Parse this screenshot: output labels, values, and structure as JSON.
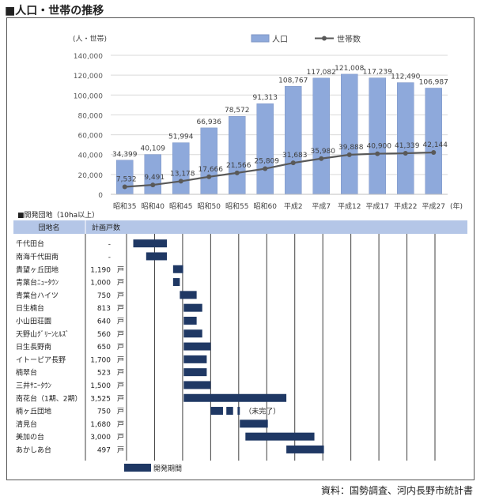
{
  "page_title": "■人口・世帯の推移",
  "source": "資料：国勢調査、河内長野市統計書",
  "chart_data": [
    {
      "type": "bar",
      "ylabel": "(人・世帯)",
      "xunit": "(年)",
      "ylim": [
        0,
        140000
      ],
      "yticks": [
        "0",
        "20,000",
        "40,000",
        "60,000",
        "80,000",
        "100,000",
        "120,000",
        "140,000"
      ],
      "categories": [
        "昭和35",
        "昭和40",
        "昭和45",
        "昭和50",
        "昭和55",
        "昭和60",
        "平成2",
        "平成7",
        "平成12",
        "平成17",
        "平成22",
        "平成27"
      ],
      "series": [
        {
          "name": "人口",
          "kind": "bar",
          "color": "#8EA9DB",
          "values": [
            34399,
            40109,
            51994,
            66936,
            78572,
            91313,
            108767,
            117082,
            121008,
            117239,
            112490,
            106987
          ],
          "labels": [
            "34,399",
            "40,109",
            "51,994",
            "66,936",
            "78,572",
            "91,313",
            "108,767",
            "117,082",
            "121,008",
            "117,239",
            "112,490",
            "106,987"
          ]
        },
        {
          "name": "世帯数",
          "kind": "line",
          "color": "#595959",
          "values": [
            7532,
            9491,
            13178,
            17666,
            21566,
            25809,
            31683,
            35980,
            39888,
            40900,
            41339,
            42144
          ],
          "labels": [
            "7,532",
            "9,491",
            "13,178",
            "17,666",
            "21,566",
            "25,809",
            "31,683",
            "35,980",
            "39,888",
            "40,900",
            "41,339",
            "42,144"
          ]
        }
      ]
    },
    {
      "type": "gantt",
      "title": "■開発団地（10ha以上）",
      "header_name": "団地名",
      "header_count": "計画戸数",
      "legend_label": "開発期間",
      "unit": "戸",
      "bar_color": "#1F3864",
      "timeline": {
        "start": 1960,
        "end": 2015,
        "grid_years": [
          1960,
          1965,
          1970,
          1975,
          1980,
          1985,
          1990,
          1995,
          2000,
          2005,
          2010,
          2015
        ]
      },
      "rows": [
        {
          "name": "千代田台",
          "count": "-",
          "unit": "",
          "periods": [
            [
              1961.2,
              1967.2
            ]
          ]
        },
        {
          "name": "南海千代田南",
          "count": "-",
          "unit": "",
          "periods": [
            [
              1963.5,
              1967.2
            ]
          ]
        },
        {
          "name": "貴望ヶ丘団地",
          "count": "1,190",
          "unit": "戸",
          "periods": [
            [
              1968.3,
              1970.1
            ]
          ]
        },
        {
          "name": "青葉台ﾆｭｰﾀｳﾝ",
          "count": "1,000",
          "unit": "戸",
          "periods": [
            [
              1968.3,
              1969.5
            ]
          ]
        },
        {
          "name": "青葉台ハイツ",
          "count": "750",
          "unit": "戸",
          "periods": [
            [
              1969.5,
              1972.5
            ]
          ]
        },
        {
          "name": "日生楠台",
          "count": "813",
          "unit": "戸",
          "periods": [
            [
              1970.2,
              1973.5
            ]
          ]
        },
        {
          "name": "小山田荘園",
          "count": "640",
          "unit": "戸",
          "periods": [
            [
              1970.2,
              1972.5
            ]
          ]
        },
        {
          "name": "天野山ｸﾞﾘｰﾝﾋﾙｽﾞ",
          "count": "560",
          "unit": "戸",
          "periods": [
            [
              1970.2,
              1973.5
            ]
          ]
        },
        {
          "name": "日生長野南",
          "count": "650",
          "unit": "戸",
          "periods": [
            [
              1970.2,
              1975.0
            ]
          ]
        },
        {
          "name": "イトーピア長野",
          "count": "1,700",
          "unit": "戸",
          "periods": [
            [
              1970.2,
              1974.3
            ]
          ]
        },
        {
          "name": "楠翠台",
          "count": "523",
          "unit": "戸",
          "periods": [
            [
              1970.2,
              1974.3
            ]
          ]
        },
        {
          "name": "三井ｻﾆｰﾀｳﾝ",
          "count": "1,500",
          "unit": "戸",
          "periods": [
            [
              1970.2,
              1975.0
            ]
          ]
        },
        {
          "name": "南花台（1期、2期）",
          "count": "3,525",
          "unit": "戸",
          "periods": [
            [
              1970.2,
              1988.5
            ]
          ]
        },
        {
          "name": "楠ヶ丘団地",
          "count": "750",
          "unit": "戸",
          "periods": [
            [
              1975.0,
              1977.2
            ],
            [
              1977.8,
              1979.0
            ],
            [
              1979.8,
              1980.2
            ]
          ],
          "note": "（未完了）"
        },
        {
          "name": "清見台",
          "count": "1,680",
          "unit": "戸",
          "periods": [
            [
              1980.2,
              1985.2
            ]
          ]
        },
        {
          "name": "美加の台",
          "count": "3,000",
          "unit": "戸",
          "periods": [
            [
              1981.2,
              1993.5
            ]
          ]
        },
        {
          "name": "あかしあ台",
          "count": "497",
          "unit": "戸",
          "periods": [
            [
              1988.5,
              1995.2
            ]
          ]
        }
      ]
    }
  ]
}
